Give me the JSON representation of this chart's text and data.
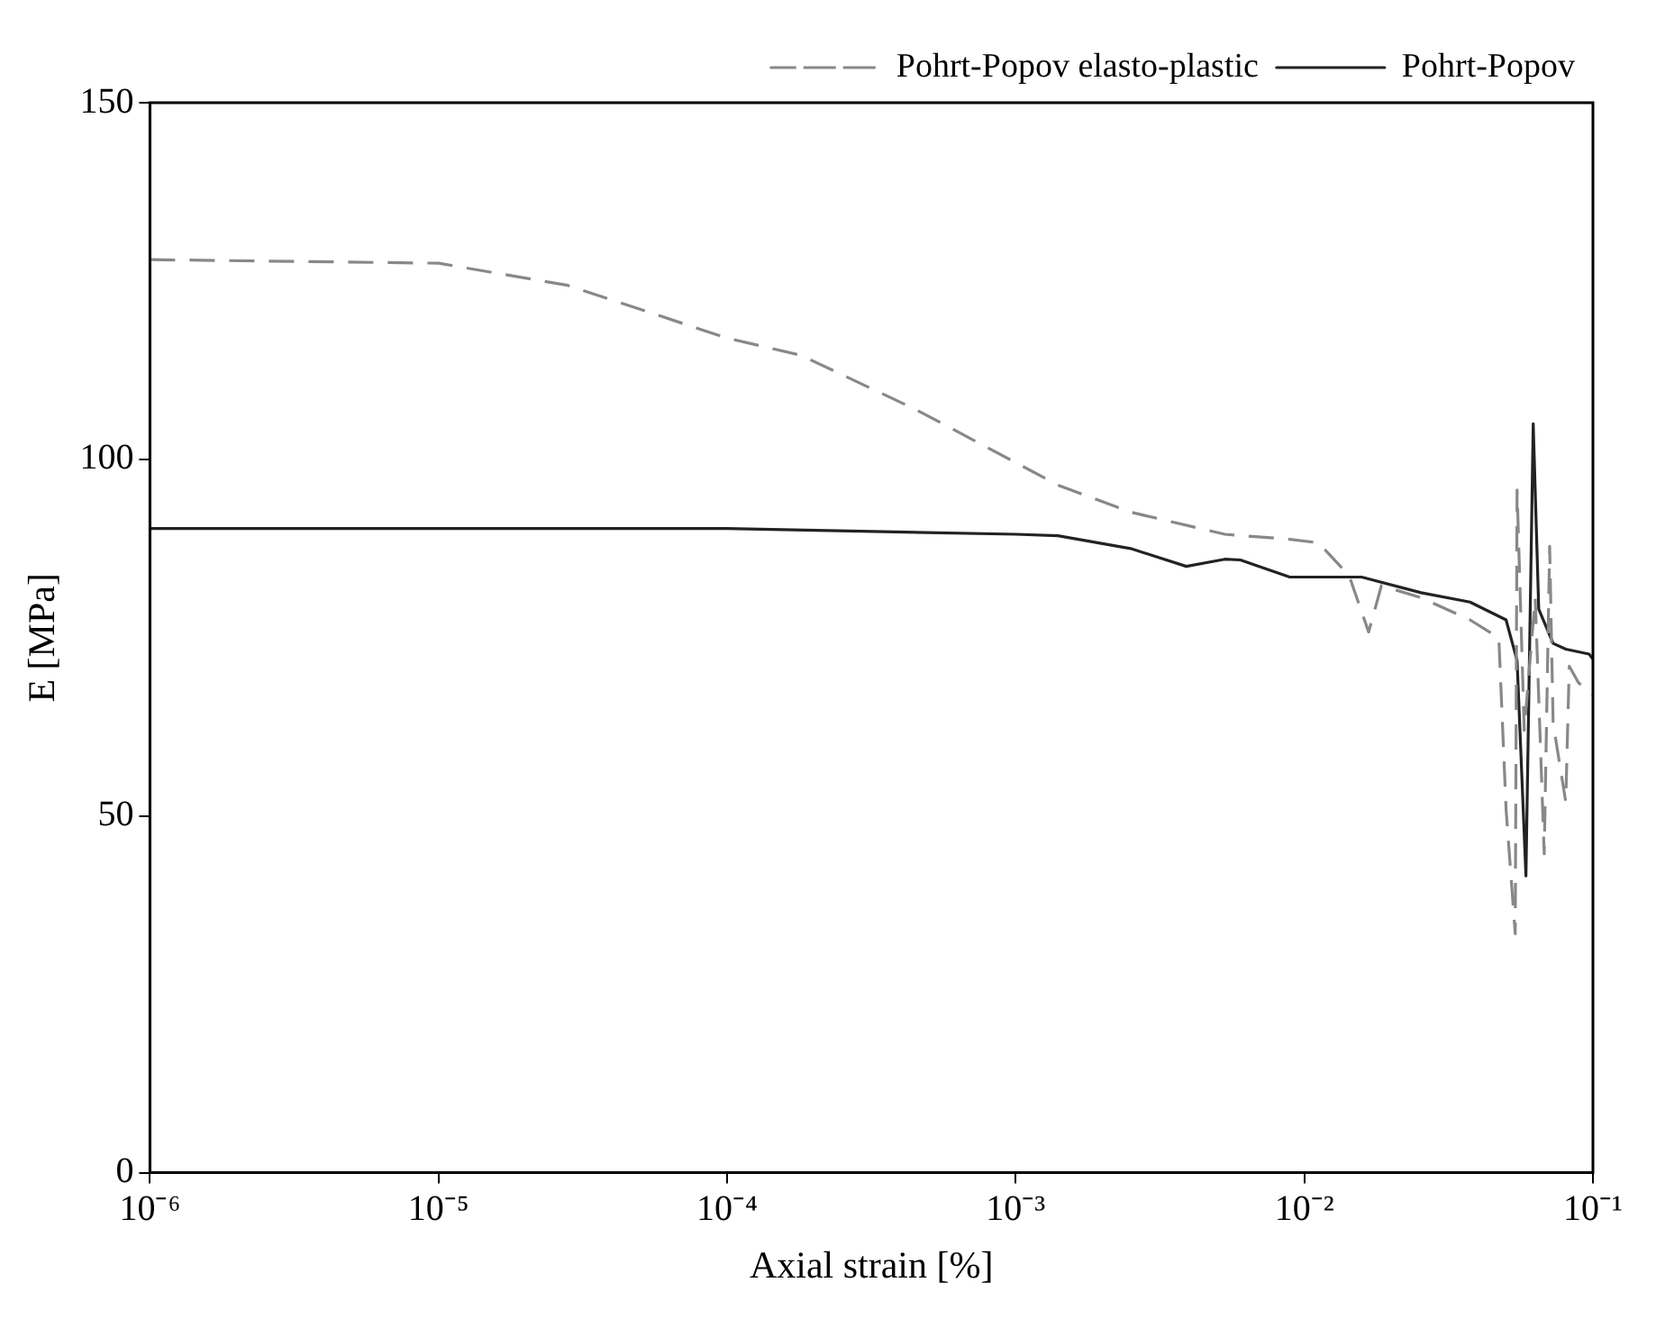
{
  "chart_data": {
    "type": "line",
    "xlabel": "Axial strain [%]",
    "ylabel": "E [MPa]",
    "log": "x",
    "xlim": [
      1e-06,
      0.1
    ],
    "xticks": [
      {
        "value": 1e-06,
        "label": "10⁻⁶"
      },
      {
        "value": 1e-05,
        "label": "10⁻⁵"
      },
      {
        "value": 0.0001,
        "label": "10⁻⁴"
      },
      {
        "value": 0.001,
        "label": "10⁻³"
      },
      {
        "value": 0.01,
        "label": "10⁻²"
      },
      {
        "value": 0.1,
        "label": "10⁻¹"
      }
    ],
    "ylim": [
      0,
      150
    ],
    "yticks": [
      0,
      50,
      100,
      150
    ],
    "grid": false,
    "legend": "top right",
    "marker": "none",
    "series": [
      {
        "name": "Pohrt-Popov elasto-plastic",
        "color": "#888888",
        "line_style": "dashed",
        "x": [
          1e-06,
          1e-05,
          2.8e-05,
          0.0001,
          0.00018,
          0.00045,
          0.0014,
          0.0025,
          0.0053,
          0.0089,
          0.0112,
          0.0143,
          0.0167,
          0.0185,
          0.0254,
          0.0375,
          0.0472,
          0.05,
          0.0538,
          0.0546,
          0.0578,
          0.0631,
          0.0678,
          0.0708,
          0.0728,
          0.0805,
          0.0828,
          0.0891,
          0.1
        ],
        "values": [
          128,
          127.5,
          124.4,
          117,
          114.6,
          107,
          96.4,
          92.6,
          89.5,
          88.8,
          88.3,
          83.7,
          75.8,
          82.3,
          80.6,
          77.5,
          75,
          51,
          33.5,
          95.7,
          62,
          80.6,
          44.7,
          87.8,
          63,
          52,
          71,
          68.7,
          67
        ]
      },
      {
        "name": "Pohrt-Popov",
        "color": "#222222",
        "line_style": "solid",
        "x": [
          1e-06,
          0.0001,
          0.001,
          0.0014,
          0.0025,
          0.0039,
          0.0053,
          0.006,
          0.0089,
          0.0158,
          0.0254,
          0.0375,
          0.05,
          0.0546,
          0.0586,
          0.0621,
          0.0649,
          0.0728,
          0.0805,
          0.097,
          0.1
        ],
        "values": [
          90.3,
          90.3,
          89.5,
          89.3,
          87.5,
          85,
          86,
          85.9,
          83.5,
          83.5,
          81.3,
          80,
          77.5,
          71.8,
          41.6,
          105,
          79,
          74.2,
          73.4,
          72.7,
          72
        ]
      }
    ]
  }
}
